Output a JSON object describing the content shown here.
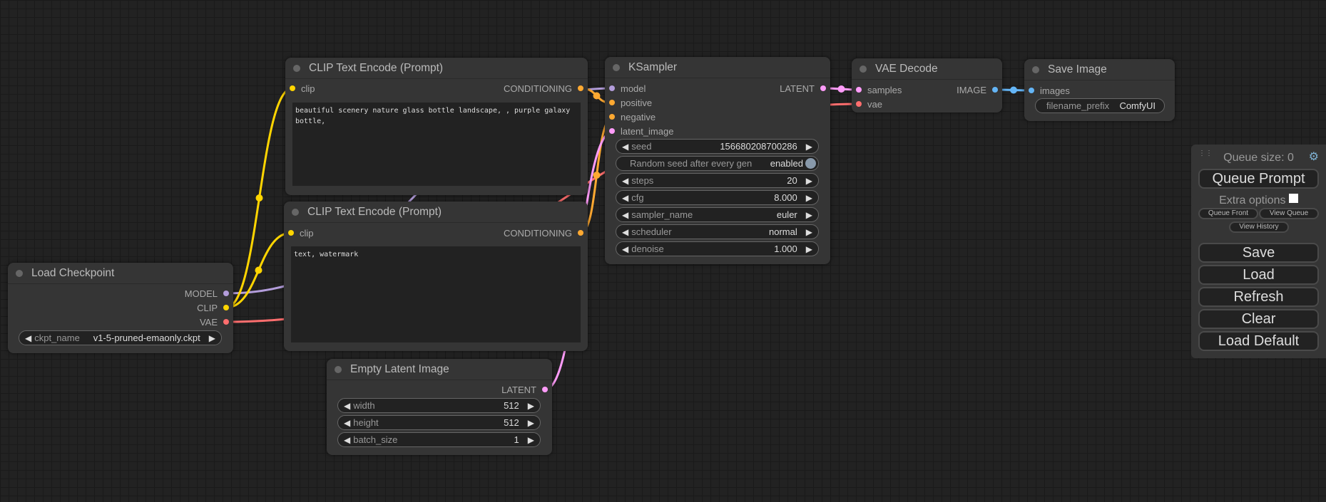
{
  "colors": {
    "model": "#b39ddb",
    "clip": "#ffd500",
    "vae": "#ff6e6e",
    "conditioning": "#ffa931",
    "latent": "#ff9cf9",
    "image": "#64b5f6"
  },
  "nodes": {
    "clip_pos": {
      "title": "CLIP Text Encode (Prompt)",
      "in_clip": "clip",
      "out": "CONDITIONING",
      "text": "beautiful scenery nature glass bottle landscape, , purple galaxy bottle,"
    },
    "clip_neg": {
      "title": "CLIP Text Encode (Prompt)",
      "in_clip": "clip",
      "out": "CONDITIONING",
      "text": "text, watermark"
    },
    "ckpt": {
      "title": "Load Checkpoint",
      "out_model": "MODEL",
      "out_clip": "CLIP",
      "out_vae": "VAE",
      "w_label": "ckpt_name",
      "w_value": "v1-5-pruned-emaonly.ckpt"
    },
    "latent": {
      "title": "Empty Latent Image",
      "out": "LATENT",
      "widgets": [
        {
          "label": "width",
          "value": "512"
        },
        {
          "label": "height",
          "value": "512"
        },
        {
          "label": "batch_size",
          "value": "1"
        }
      ]
    },
    "ksampler": {
      "title": "KSampler",
      "inputs": [
        "model",
        "positive",
        "negative",
        "latent_image"
      ],
      "out": "LATENT",
      "seed": {
        "label": "seed",
        "value": "156680208700286"
      },
      "random": {
        "label": "Random seed after every gen",
        "value": "enabled"
      },
      "widgets": [
        {
          "label": "steps",
          "value": "20"
        },
        {
          "label": "cfg",
          "value": "8.000"
        },
        {
          "label": "sampler_name",
          "value": "euler"
        },
        {
          "label": "scheduler",
          "value": "normal"
        },
        {
          "label": "denoise",
          "value": "1.000"
        }
      ]
    },
    "vae": {
      "title": "VAE Decode",
      "in_samples": "samples",
      "in_vae": "vae",
      "out": "IMAGE"
    },
    "save": {
      "title": "Save Image",
      "in_images": "images",
      "w_label": "filename_prefix",
      "w_value": "ComfyUI"
    }
  },
  "panel": {
    "queue_size": "Queue size: 0",
    "queue_prompt": "Queue Prompt",
    "extra_options": "Extra options",
    "queue_front": "Queue Front",
    "view_queue": "View Queue",
    "view_history": "View History",
    "save": "Save",
    "load": "Load",
    "refresh": "Refresh",
    "clear": "Clear",
    "load_default": "Load Default",
    "settings_icon": "gear-icon"
  }
}
